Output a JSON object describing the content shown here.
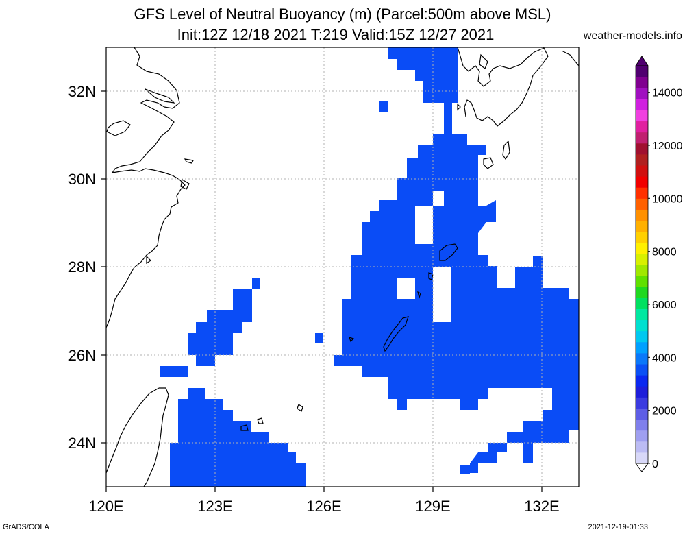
{
  "title": "GFS Level of Neutral Buoyancy (m) (Parcel:500m above MSL)",
  "subtitle": "Init:12Z 12/18 2021 T:219 Valid:15Z 12/27 2021",
  "site": "weather-models.info",
  "footer_left": "GrADS/COLA",
  "footer_right": "2021-12-19-01:33",
  "x_ticks": [
    "120E",
    "123E",
    "126E",
    "129E",
    "132E"
  ],
  "y_ticks": [
    "32N",
    "30N",
    "28N",
    "26N",
    "24N"
  ],
  "colorbar": {
    "labels": [
      "0",
      "2000",
      "4000",
      "6000",
      "8000",
      "10000",
      "12000",
      "14000"
    ],
    "colors": [
      "#d8d8f8",
      "#bcbcf4",
      "#9f9ff0",
      "#7f7fec",
      "#5e5ee6",
      "#3b3be0",
      "#1e1eda",
      "#0a28f0",
      "#0a50f5",
      "#0a78fa",
      "#00a0ff",
      "#00c8f0",
      "#00e0d0",
      "#00e8a0",
      "#00e060",
      "#20d820",
      "#60e000",
      "#a0e800",
      "#d8f000",
      "#fff000",
      "#ffd000",
      "#ffb000",
      "#ff9000",
      "#ff6000",
      "#ff3000",
      "#f00000",
      "#d01010",
      "#b02020",
      "#a01030",
      "#c02070",
      "#e020a0",
      "#f040e0",
      "#d020e0",
      "#a010c0",
      "#800090",
      "#500070"
    ]
  },
  "map": {
    "field_color": "#0a4cf6",
    "lon_range": [
      120,
      133
    ],
    "lat_range": [
      23,
      33
    ]
  }
}
